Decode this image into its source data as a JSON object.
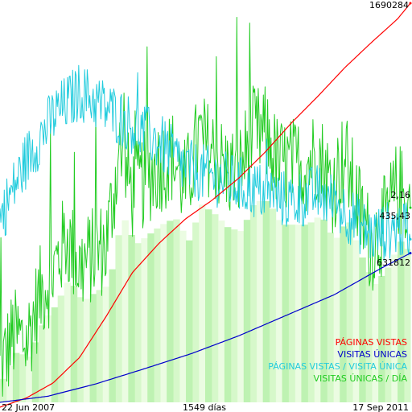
{
  "chart_data": {
    "type": "line",
    "title": "",
    "xlabel": "1549 días",
    "x_start_label": "22 Jun 2007",
    "x_end_label": "17 Sep 2011",
    "x_range": [
      "2007-06-22",
      "2011-09-17"
    ],
    "grid": false,
    "legend_position": "bottom-right",
    "legend": [
      {
        "label": "PÁGINAS VISTAS",
        "color": "#ff0000"
      },
      {
        "label": "VISITAS ÚNICAS",
        "color": "#0000cc"
      },
      {
        "label": "PÁGINAS VISTAS / VISITA ÚNICA",
        "color": "#22ccdd"
      },
      {
        "label": "VISITAS ÚNICAS / DÍA",
        "color": "#22cc22"
      }
    ],
    "series": [
      {
        "name": "PÁGINAS VISTAS",
        "color": "#ff0000",
        "end_label": "1690284",
        "x": [
          "2007-06-22",
          "2007-09-30",
          "2008-01-08",
          "2008-04-17",
          "2008-07-26",
          "2008-11-03",
          "2009-02-11",
          "2009-05-22",
          "2009-08-30",
          "2009-12-08",
          "2010-03-18",
          "2010-06-26",
          "2010-10-04",
          "2011-01-12",
          "2011-04-22",
          "2011-07-31",
          "2011-09-17"
        ],
        "values": [
          0,
          39000,
          101000,
          208000,
          379000,
          564000,
          686000,
          788000,
          866000,
          958000,
          1067000,
          1190000,
          1302000,
          1420000,
          1525000,
          1625000,
          1690284
        ]
      },
      {
        "name": "VISITAS ÚNICAS",
        "color": "#0000cc",
        "end_label": "631812",
        "x": [
          "2007-06-22",
          "2007-12-20",
          "2008-06-17",
          "2008-12-14",
          "2009-06-12",
          "2009-12-09",
          "2010-06-07",
          "2010-12-04",
          "2011-06-02",
          "2011-09-17"
        ],
        "values": [
          0,
          26000,
          78000,
          141000,
          206000,
          282000,
          369000,
          456000,
          570000,
          631812
        ]
      },
      {
        "name": "PÁGINAS VISTAS / VISITA ÚNICA",
        "color": "#22ccdd",
        "end_label": "2,16",
        "x": [
          "2007-06-22",
          "2007-09-30",
          "2008-01-08",
          "2008-04-17",
          "2008-07-26",
          "2008-11-03",
          "2009-02-11",
          "2009-05-22",
          "2009-08-30",
          "2009-12-08",
          "2010-03-18",
          "2010-06-26",
          "2010-10-04",
          "2011-01-12",
          "2011-04-22",
          "2011-07-31",
          "2011-09-17"
        ],
        "values": [
          2.4,
          3.1,
          3.6,
          3.9,
          3.7,
          3.5,
          3.3,
          3.0,
          2.9,
          2.8,
          2.7,
          2.6,
          2.7,
          2.5,
          2.2,
          2.3,
          2.16
        ]
      },
      {
        "name": "VISITAS ÚNICAS / DÍA",
        "color": "#22cc22",
        "end_label": "435,43",
        "x": [
          "2007-06-22",
          "2007-08-11",
          "2007-09-30",
          "2007-11-19",
          "2008-01-08",
          "2008-02-27",
          "2008-04-17",
          "2008-06-06",
          "2008-07-26",
          "2008-09-14",
          "2008-11-03",
          "2008-12-23",
          "2009-02-11",
          "2009-04-02",
          "2009-05-22",
          "2009-07-11",
          "2009-08-30",
          "2009-10-19",
          "2009-12-08",
          "2010-01-27",
          "2010-03-18",
          "2010-05-07",
          "2010-06-26",
          "2010-08-15",
          "2010-10-04",
          "2010-11-23",
          "2011-01-12",
          "2011-03-03",
          "2011-04-22",
          "2011-06-11",
          "2011-07-31",
          "2011-09-17"
        ],
        "values": [
          70,
          150,
          135,
          240,
          290,
          370,
          300,
          330,
          350,
          560,
          470,
          500,
          530,
          550,
          480,
          590,
          560,
          520,
          510,
          600,
          600,
          530,
          530,
          530,
          560,
          480,
          550,
          440,
          350,
          400,
          480,
          435.43
        ]
      }
    ]
  }
}
